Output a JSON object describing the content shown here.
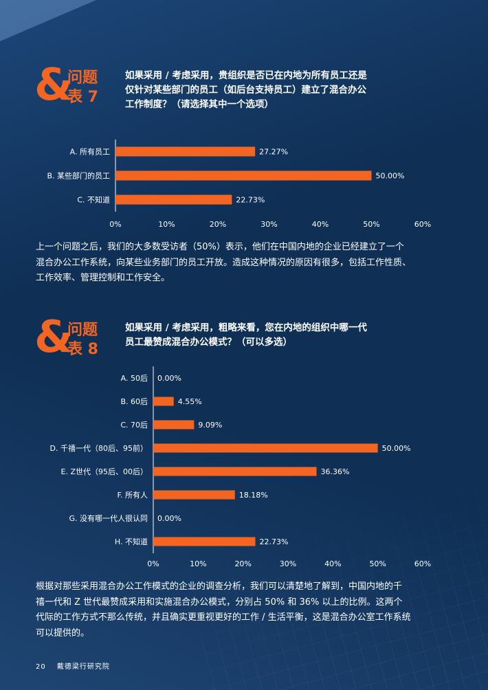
{
  "section7": {
    "label_top": "问题",
    "label_bottom": "表 7",
    "question_lines": [
      "如果采用 / 考虑采用，贵组织是否已在内地为所有员工还是",
      "仅针对某些部门的员工（如后台支持员工）建立了混合办公",
      "工作制度？（请选择其中一个选项）"
    ],
    "paragraph_lines": [
      "上一个问题之后，我们的大多数受访者（50%）表示，他们在中国内地的企业已经建立了一个",
      "混合办公工作系统，向某些业务部门的员工开放。造成这种情况的原因有很多，包括工作性质、",
      "工作效率、管理控制和工作安全。"
    ]
  },
  "section8": {
    "label_top": "问题",
    "label_bottom": "表 8",
    "question_lines": [
      "如果采用 / 考虑采用，粗略来看，您在内地的组织中哪一代",
      "员工最赞成混合办公模式？（可以多选）"
    ],
    "paragraph_lines": [
      "根据对那些采用混合办公工作模式的企业的调查分析，我们可以清楚地了解到，中国内地的千",
      "禧一代和 Z 世代最赞成采用和实施混合办公模式，分别占 50% 和 36% 以上的比例。这两个",
      "代际的工作方式不那么传统，并且确实更重视更好的工作 / 生活平衡，这是混合办公室工作系统",
      "可以提供的。"
    ]
  },
  "chart_data": [
    {
      "type": "bar",
      "orientation": "horizontal",
      "categories": [
        "A. 所有员工",
        "B. 某些部门的员工",
        "C. 不知道"
      ],
      "values": [
        27.27,
        50.0,
        22.73
      ],
      "value_labels": [
        "27.27%",
        "50.00%",
        "22.73%"
      ],
      "xticks": [
        "0%",
        "10%",
        "20%",
        "30%",
        "40%",
        "50%",
        "60%"
      ],
      "xlim": [
        0,
        60
      ],
      "bar_color": "#f26522"
    },
    {
      "type": "bar",
      "orientation": "horizontal",
      "categories": [
        "A. 50后",
        "B. 60后",
        "C. 70后",
        "D. 千禧一代（80后、95前）",
        "E. Z世代（95后、00后）",
        "F. 所有人",
        "G. 没有哪一代人很认同",
        "H. 不知道"
      ],
      "values": [
        0.0,
        4.55,
        9.09,
        50.0,
        36.36,
        18.18,
        0.0,
        22.73
      ],
      "value_labels": [
        "0.00%",
        "4.55%",
        "9.09%",
        "50.00%",
        "36.36%",
        "18.18%",
        "0.00%",
        "22.73%"
      ],
      "xticks": [
        "0%",
        "10%",
        "20%",
        "30%",
        "40%",
        "50%",
        "60%"
      ],
      "xlim": [
        0,
        60
      ],
      "bar_color": "#f26522"
    }
  ],
  "footer": {
    "page_number": "20",
    "publisher": "戴德梁行研究院"
  }
}
